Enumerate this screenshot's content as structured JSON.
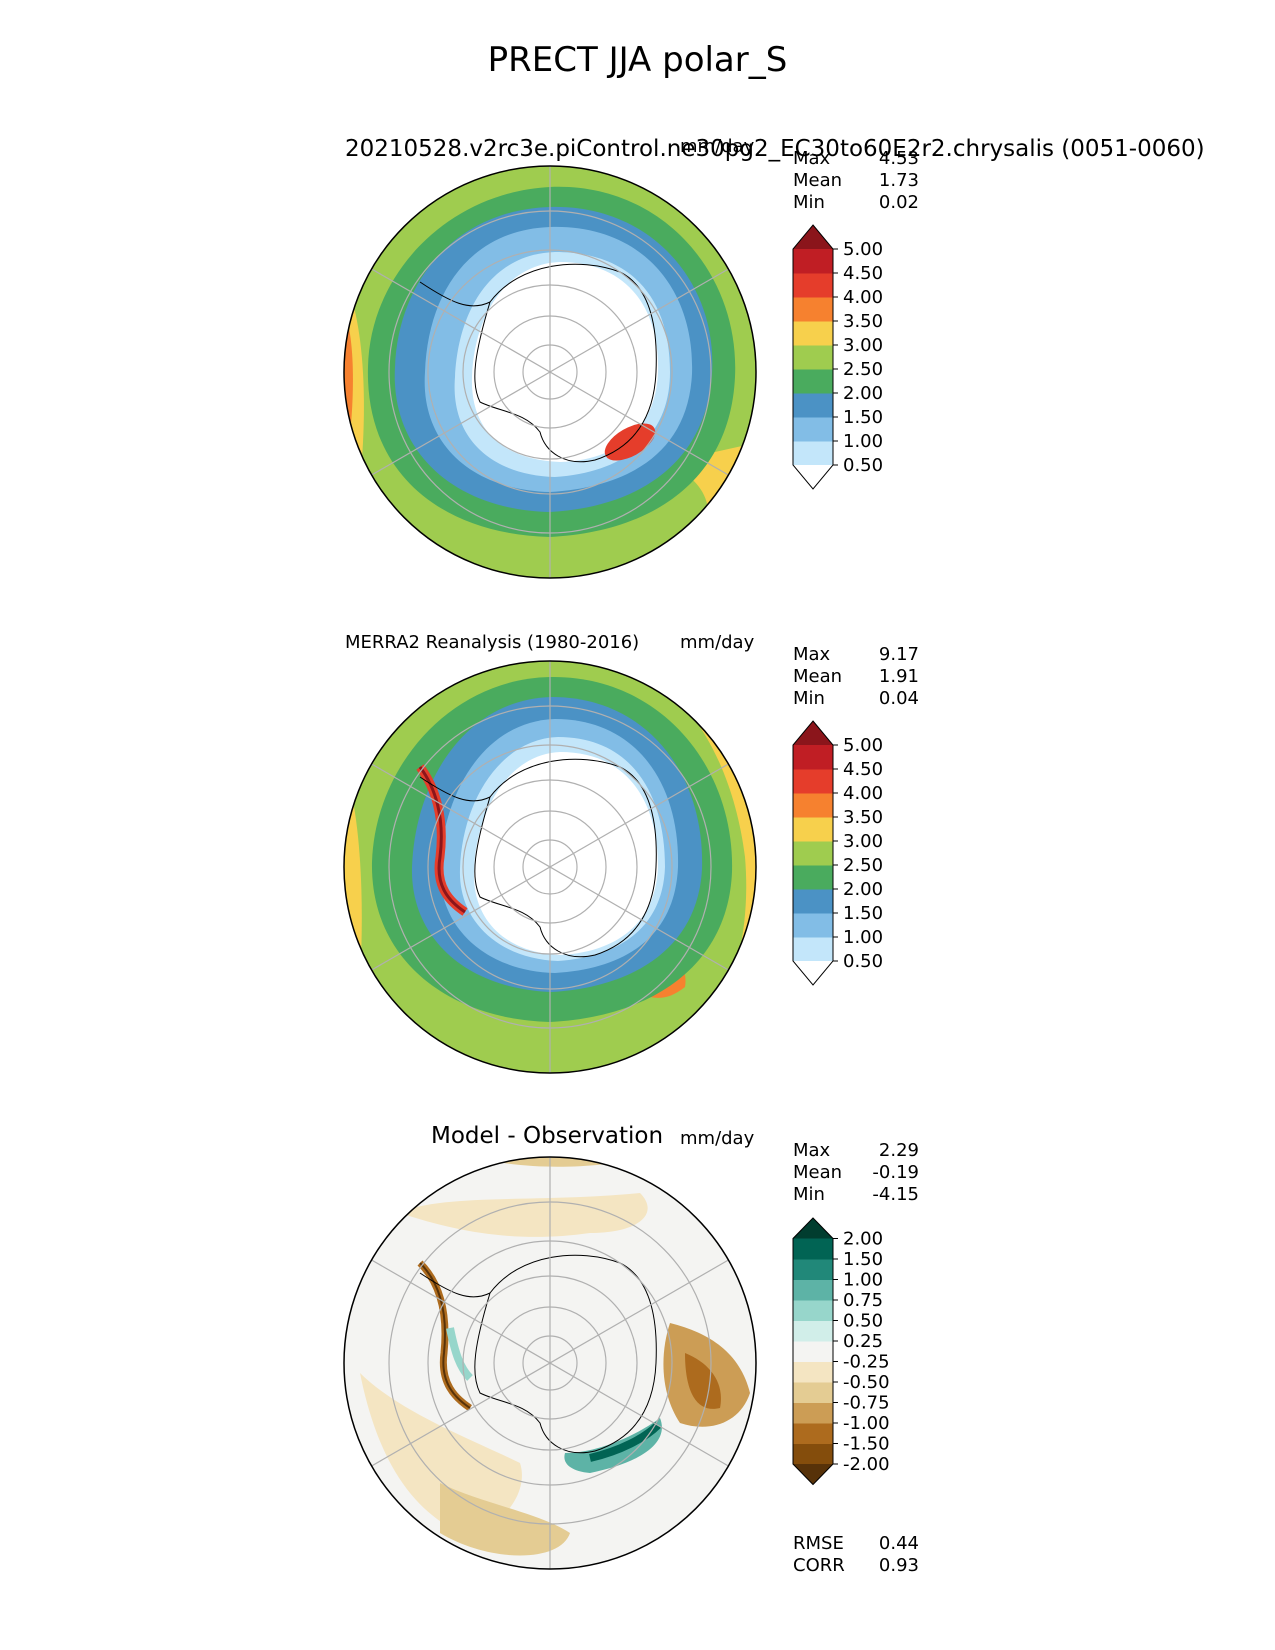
{
  "title": "PRECT JJA polar_S",
  "colors": {
    "precip": [
      "#ffffff",
      "#c3e6fa",
      "#82bde6",
      "#4b92c5",
      "#4aab5e",
      "#9fcc4f",
      "#f7d04c",
      "#f6812f",
      "#e53d2b",
      "#c01e24",
      "#8b151b"
    ],
    "diff": [
      "#573209",
      "#844d0c",
      "#ad6b1e",
      "#cc9d55",
      "#e4cc93",
      "#f4e5c2",
      "#f4f4f2",
      "#d1eee9",
      "#97d6cb",
      "#5db3a6",
      "#218879",
      "#016454",
      "#013d2f"
    ]
  },
  "panels": [
    {
      "id": "test",
      "title_left": "",
      "title_center": "20210528.v2rc3e.piControl.ne30pg2_EC30to60E2r2.chrysalis (0051-0060)",
      "title_right": "mm/day",
      "stats": [
        {
          "label": "Max",
          "value": "4.53"
        },
        {
          "label": "Mean",
          "value": "1.73"
        },
        {
          "label": "Min",
          "value": "0.02"
        }
      ],
      "colorbar_ticks": [
        "0.50",
        "1.00",
        "1.50",
        "2.00",
        "2.50",
        "3.00",
        "3.50",
        "4.00",
        "4.50",
        "5.00"
      ]
    },
    {
      "id": "ref",
      "title_left": "MERRA2 Reanalysis (1980-2016)",
      "title_center": "",
      "title_right": "mm/day",
      "stats": [
        {
          "label": "Max",
          "value": "9.17"
        },
        {
          "label": "Mean",
          "value": "1.91"
        },
        {
          "label": "Min",
          "value": "0.04"
        }
      ],
      "colorbar_ticks": [
        "0.50",
        "1.00",
        "1.50",
        "2.00",
        "2.50",
        "3.00",
        "3.50",
        "4.00",
        "4.50",
        "5.00"
      ]
    },
    {
      "id": "diff",
      "title_left": "",
      "title_center": "Model - Observation",
      "title_right": "mm/day",
      "stats": [
        {
          "label": "Max",
          "value": "2.29"
        },
        {
          "label": "Mean",
          "value": "-0.19"
        },
        {
          "label": "Min",
          "value": "-4.15"
        }
      ],
      "colorbar_ticks": [
        "-2.00",
        "-1.50",
        "-1.00",
        "-0.75",
        "-0.50",
        "-0.25",
        "0.25",
        "0.50",
        "0.75",
        "1.00",
        "1.50",
        "2.00"
      ],
      "extra_stats": [
        {
          "label": "RMSE",
          "value": "0.44"
        },
        {
          "label": "CORR",
          "value": "0.93"
        }
      ]
    }
  ],
  "chart_data": [
    {
      "type": "heatmap",
      "title": "20210528.v2rc3e.piControl.ne30pg2_EC30to60E2r2.chrysalis (0051-0060)",
      "units": "mm/day",
      "projection": "South polar stereographic",
      "max": 4.53,
      "mean": 1.73,
      "min": 0.02,
      "levels": [
        0.5,
        1.0,
        1.5,
        2.0,
        2.5,
        3.0,
        3.5,
        4.0,
        4.5,
        5.0
      ]
    },
    {
      "type": "heatmap",
      "title": "MERRA2 Reanalysis (1980-2016)",
      "units": "mm/day",
      "projection": "South polar stereographic",
      "max": 9.17,
      "mean": 1.91,
      "min": 0.04,
      "levels": [
        0.5,
        1.0,
        1.5,
        2.0,
        2.5,
        3.0,
        3.5,
        4.0,
        4.5,
        5.0
      ]
    },
    {
      "type": "heatmap",
      "title": "Model - Observation",
      "units": "mm/day",
      "projection": "South polar stereographic",
      "max": 2.29,
      "mean": -0.19,
      "min": -4.15,
      "rmse": 0.44,
      "corr": 0.93,
      "levels": [
        -2.0,
        -1.5,
        -1.0,
        -0.75,
        -0.5,
        -0.25,
        0.25,
        0.5,
        0.75,
        1.0,
        1.5,
        2.0
      ]
    }
  ]
}
